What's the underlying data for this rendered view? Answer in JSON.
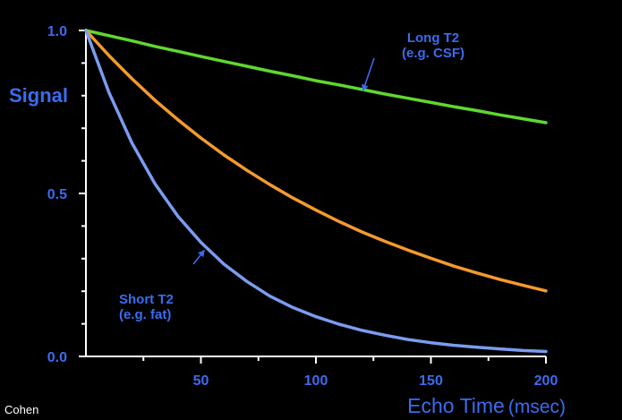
{
  "chart_data": {
    "type": "line",
    "title": "",
    "xlabel": "Echo Time",
    "xlabel_unit": "(msec)",
    "ylabel": "Signal",
    "xlim": [
      0,
      200
    ],
    "ylim": [
      0,
      1.0
    ],
    "x_ticks": [
      50,
      100,
      150,
      200
    ],
    "y_ticks": [
      0.0,
      0.5,
      1.0
    ],
    "y_tick_labels": [
      "0.0",
      "0.5",
      "1.0"
    ],
    "y_minor_ticks": [
      0.1,
      0.2,
      0.3,
      0.4,
      0.6,
      0.7,
      0.8,
      0.9
    ],
    "x_minor_ticks": [
      25,
      75,
      125,
      175
    ],
    "grid": false,
    "x": [
      0,
      10,
      20,
      30,
      40,
      50,
      60,
      70,
      80,
      90,
      100,
      110,
      120,
      130,
      140,
      150,
      160,
      170,
      180,
      190,
      200
    ],
    "series": [
      {
        "values": [
          1.0,
          0.984,
          0.968,
          0.951,
          0.936,
          0.92,
          0.905,
          0.89,
          0.875,
          0.861,
          0.846,
          0.833,
          0.819,
          0.805,
          0.792,
          0.779,
          0.766,
          0.754,
          0.741,
          0.729,
          0.717
        ],
        "color": "#5fd82f"
      },
      {
        "values": [
          1.0,
          0.923,
          0.852,
          0.786,
          0.726,
          0.67,
          0.618,
          0.571,
          0.527,
          0.486,
          0.449,
          0.414,
          0.382,
          0.353,
          0.326,
          0.301,
          0.277,
          0.256,
          0.236,
          0.218,
          0.201
        ],
        "color": "#f59a2e"
      },
      {
        "values": [
          1.0,
          0.81,
          0.655,
          0.53,
          0.43,
          0.35,
          0.283,
          0.23,
          0.185,
          0.15,
          0.122,
          0.099,
          0.08,
          0.065,
          0.052,
          0.042,
          0.034,
          0.028,
          0.023,
          0.018,
          0.015
        ],
        "color": "#7b9cf0"
      }
    ],
    "annotations": [
      {
        "lines": [
          "Long T2",
          "(e.g. CSF)"
        ],
        "target_x": 120,
        "target_y": 0.805,
        "color": "#3b6cf0"
      },
      {
        "lines": [
          "Short T2",
          "(e.g. fat)"
        ],
        "target_x": 52,
        "target_y": 0.33,
        "color": "#3b6cf0"
      }
    ],
    "axis_color": "#ffffff",
    "tick_label_color": "#3b6cf0",
    "ylabel_color": "#3b6cf0",
    "xlabel_color": "#3b6cf0"
  },
  "credit": "Cohen",
  "colors": {
    "background": "#000000",
    "credit": "#ffffff"
  }
}
